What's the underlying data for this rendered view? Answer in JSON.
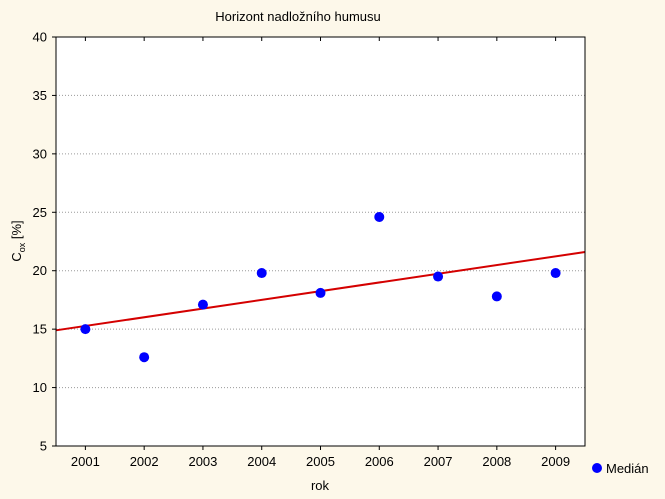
{
  "chart_data": {
    "type": "scatter",
    "title": "Horizont nadložního humusu",
    "xlabel": "rok",
    "ylabel": {
      "main": "C",
      "sub": "ox",
      "rest": " [%]"
    },
    "xlim": [
      2000.5,
      2009.5
    ],
    "ylim": [
      5,
      40
    ],
    "xticks": [
      2001,
      2002,
      2003,
      2004,
      2005,
      2006,
      2007,
      2008,
      2009
    ],
    "yticks": [
      5,
      10,
      15,
      20,
      25,
      30,
      35,
      40
    ],
    "grid": "horizontal dotted",
    "legend_position": "bottom-right",
    "series": [
      {
        "name": "Medián",
        "color": "#0000ff",
        "points": [
          {
            "x": 2001,
            "y": 15.0
          },
          {
            "x": 2002,
            "y": 12.6
          },
          {
            "x": 2003,
            "y": 17.1
          },
          {
            "x": 2004,
            "y": 19.8
          },
          {
            "x": 2005,
            "y": 18.1
          },
          {
            "x": 2006,
            "y": 24.6
          },
          {
            "x": 2007,
            "y": 19.5
          },
          {
            "x": 2008,
            "y": 17.8
          },
          {
            "x": 2009,
            "y": 19.8
          }
        ]
      }
    ],
    "trendline": {
      "color": "#d40000",
      "start": {
        "x": 2000.5,
        "y": 14.9
      },
      "end": {
        "x": 2009.5,
        "y": 21.6
      }
    }
  }
}
